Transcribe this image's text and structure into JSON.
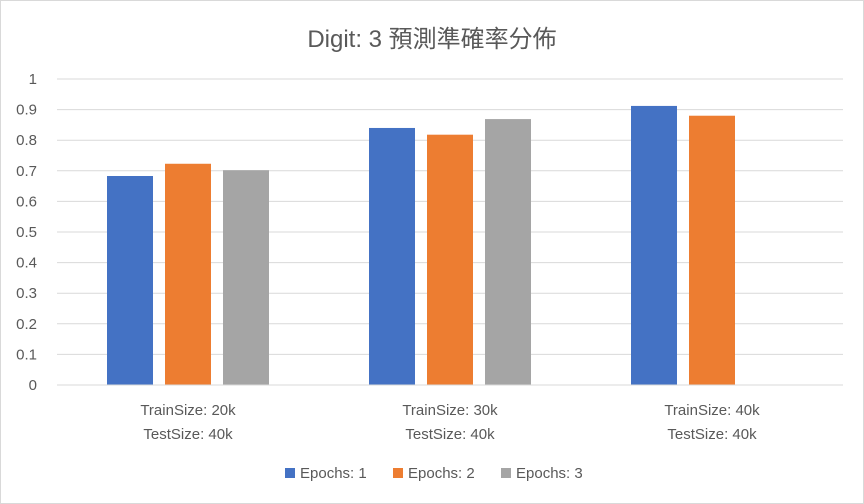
{
  "chart_data": {
    "type": "bar",
    "title": "Digit: 3  預測準確率分佈",
    "xlabel": "",
    "ylabel": "",
    "ylim": [
      0,
      1
    ],
    "yticks": [
      "0",
      "0.1",
      "0.2",
      "0.3",
      "0.4",
      "0.5",
      "0.6",
      "0.7",
      "0.8",
      "0.9",
      "1"
    ],
    "categories": [
      [
        "TrainSize: 20k",
        "TestSize: 40k"
      ],
      [
        "TrainSize: 30k",
        "TestSize: 40k"
      ],
      [
        "TrainSize: 40k",
        "TestSize: 40k"
      ]
    ],
    "series": [
      {
        "name": "Epochs: 1",
        "color": "#4472c4",
        "values": [
          0.683,
          0.84,
          0.912
        ]
      },
      {
        "name": "Epochs: 2",
        "color": "#ed7d31",
        "values": [
          0.723,
          0.818,
          0.88
        ]
      },
      {
        "name": "Epochs: 3",
        "color": "#a5a5a5",
        "values": [
          0.702,
          0.869,
          null
        ]
      }
    ],
    "grid": true,
    "legend_position": "bottom"
  }
}
